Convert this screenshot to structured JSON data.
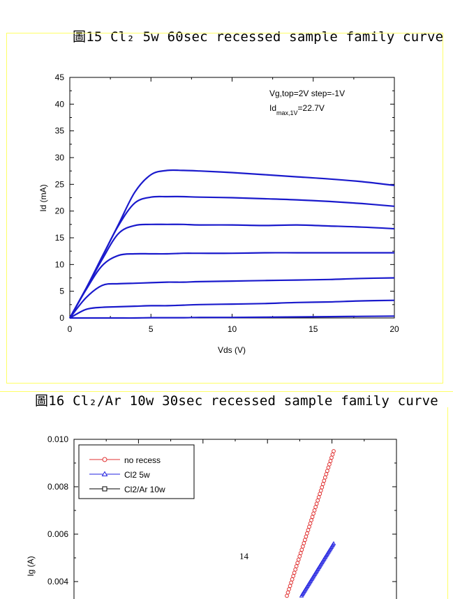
{
  "figure15": {
    "caption": "圖15 Cl₂ 5w 60sec recessed sample family curve",
    "annotation_line1": "Vg,top=2V step=-1V",
    "annotation_id": "Id",
    "annotation_sub": "max,1V",
    "annotation_rest": "=22.7V",
    "line_color": "#1a1acc"
  },
  "figure16": {
    "caption": "圖16 Cl₂/Ar 10w 30sec recessed sample family curve"
  },
  "page_number": "14",
  "chart_data": [
    {
      "type": "line",
      "title": "",
      "xlabel": "Vds (V)",
      "ylabel": "Id (mA)",
      "xlim": [
        0,
        20
      ],
      "ylim": [
        0,
        45
      ],
      "xticks": [
        "0",
        "5",
        "10",
        "15",
        "20"
      ],
      "yticks": [
        "0",
        "5",
        "10",
        "15",
        "20",
        "25",
        "30",
        "35",
        "40",
        "45"
      ],
      "grid": false,
      "x": [
        0,
        1,
        2,
        3,
        4,
        5,
        6,
        7,
        8,
        10,
        12,
        14,
        16,
        18,
        20
      ],
      "series": [
        {
          "values": [
            0,
            5.5,
            11.5,
            17.5,
            23.5,
            26.8,
            27.6,
            27.6,
            27.5,
            27.2,
            26.8,
            26.4,
            26.0,
            25.5,
            24.8
          ]
        },
        {
          "values": [
            0,
            5.5,
            11.5,
            17.3,
            21.5,
            22.6,
            22.7,
            22.7,
            22.6,
            22.5,
            22.3,
            22.1,
            21.8,
            21.4,
            20.9
          ]
        },
        {
          "values": [
            0,
            5.5,
            11.0,
            15.8,
            17.3,
            17.5,
            17.5,
            17.5,
            17.4,
            17.4,
            17.3,
            17.4,
            17.2,
            17.0,
            16.7
          ]
        },
        {
          "values": [
            0,
            5.3,
            9.8,
            11.7,
            12.0,
            12.0,
            12.0,
            12.1,
            12.1,
            12.1,
            12.2,
            12.2,
            12.2,
            12.2,
            12.2
          ]
        },
        {
          "values": [
            0,
            3.8,
            6.1,
            6.4,
            6.5,
            6.6,
            6.7,
            6.7,
            6.8,
            6.9,
            7.0,
            7.1,
            7.2,
            7.4,
            7.5
          ]
        },
        {
          "values": [
            0,
            1.6,
            2.0,
            2.1,
            2.2,
            2.3,
            2.3,
            2.4,
            2.5,
            2.6,
            2.7,
            2.9,
            3.0,
            3.2,
            3.3
          ]
        },
        {
          "values": [
            0,
            0,
            0,
            0,
            0,
            0.05,
            0.05,
            0.05,
            0.1,
            0.1,
            0.15,
            0.2,
            0.25,
            0.3,
            0.35
          ]
        }
      ]
    },
    {
      "type": "scatter",
      "title": "",
      "xlabel": "",
      "ylabel": "Ig (A)",
      "ylim": [
        0.003,
        0.01
      ],
      "yticks": [
        "0.004",
        "0.006",
        "0.008",
        "0.010"
      ],
      "legend_position": "top-left",
      "legend": [
        "no recess",
        "Cl2 5w",
        "Cl2/Ar 10w"
      ],
      "colors": {
        "no recess": "#e03030",
        "Cl2 5w": "#2020e0",
        "Cl2/Ar 10w": "#000000"
      },
      "markers": {
        "no recess": "circle",
        "Cl2 5w": "triangle",
        "Cl2/Ar 10w": "square"
      },
      "x_fraction_range": [
        0,
        1
      ],
      "series": [
        {
          "name": "no recess",
          "x": [
            0.84,
            1.0
          ],
          "values": [
            0.0034,
            0.0095
          ]
        },
        {
          "name": "Cl2 5w",
          "x": [
            0.86,
            1.0
          ],
          "values": [
            0.0034,
            0.0056
          ]
        },
        {
          "name": "Cl2/Ar 10w",
          "x": [],
          "values": []
        }
      ]
    }
  ]
}
